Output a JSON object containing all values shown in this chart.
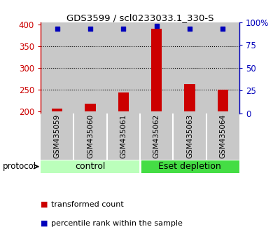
{
  "title": "GDS3599 / scl0233033.1_330-S",
  "samples": [
    "GSM435059",
    "GSM435060",
    "GSM435061",
    "GSM435062",
    "GSM435063",
    "GSM435064"
  ],
  "transformed_counts": [
    205,
    217,
    243,
    390,
    262,
    250
  ],
  "percentile_ranks": [
    93,
    93,
    93,
    96,
    93,
    93
  ],
  "ylim_left": [
    195,
    405
  ],
  "ylim_right": [
    0,
    100
  ],
  "yticks_left": [
    200,
    250,
    300,
    350,
    400
  ],
  "yticks_right": [
    0,
    25,
    50,
    75,
    100
  ],
  "ytick_labels_right": [
    "0",
    "25",
    "50",
    "75",
    "100%"
  ],
  "bar_color": "#cc0000",
  "dot_color": "#0000bb",
  "col_bg_color": "#c8c8c8",
  "group_labels": [
    "control",
    "Eset depletion"
  ],
  "group_colors": [
    "#bbffbb",
    "#44dd44"
  ],
  "legend_items": [
    "transformed count",
    "percentile rank within the sample"
  ],
  "legend_colors": [
    "#cc0000",
    "#0000bb"
  ],
  "dotted_yticks": [
    250,
    300,
    350
  ],
  "protocol_label": "protocol"
}
